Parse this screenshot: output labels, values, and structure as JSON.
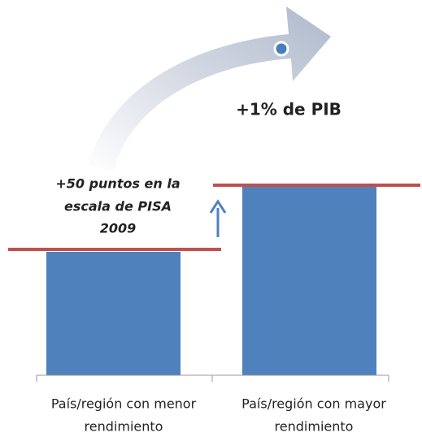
{
  "growth_label": "+1% de PIB",
  "pisa_label": [
    "+50 puntos en la",
    "escala de PISA",
    "2009"
  ],
  "categories": [
    [
      "País/región con menor",
      "rendimiento"
    ],
    [
      "País/región con mayor",
      "rendimiento"
    ]
  ]
}
